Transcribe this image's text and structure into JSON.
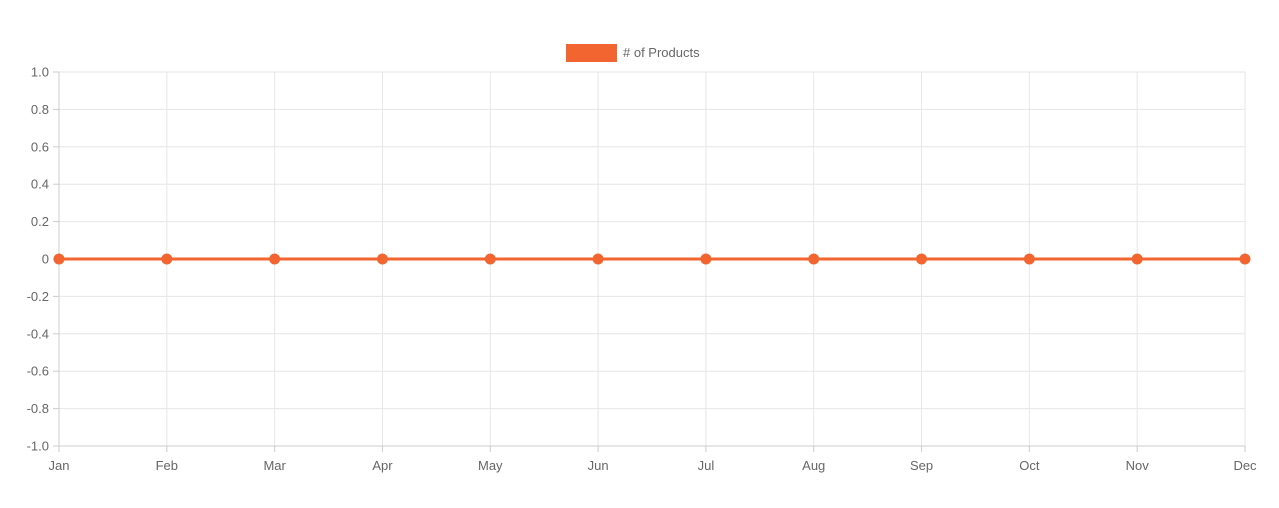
{
  "chart_data": {
    "type": "line",
    "categories": [
      "Jan",
      "Feb",
      "Mar",
      "Apr",
      "May",
      "Jun",
      "Jul",
      "Aug",
      "Sep",
      "Oct",
      "Nov",
      "Dec"
    ],
    "series": [
      {
        "name": "# of Products",
        "values": [
          0,
          0,
          0,
          0,
          0,
          0,
          0,
          0,
          0,
          0,
          0,
          0
        ],
        "color": "#f26430"
      }
    ],
    "y_ticks": [
      "1.0",
      "0.8",
      "0.6",
      "0.4",
      "0.2",
      "0",
      "-0.2",
      "-0.4",
      "-0.6",
      "-0.8",
      "-1.0"
    ],
    "ylim": [
      -1,
      1
    ],
    "title": "",
    "xlabel": "",
    "ylabel": "",
    "grid": true,
    "legend_position": "top"
  }
}
